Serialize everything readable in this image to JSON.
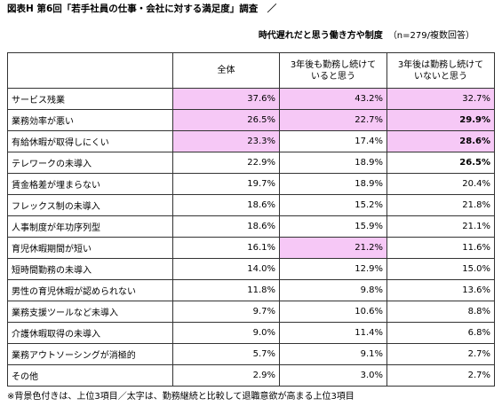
{
  "title": "図表H 第6回「若手社員の仕事・会社に対する満足度」調査　／",
  "subtitle": "時代遅れだと思う働き方や制度",
  "sample_note": "（n=279/複数回答）",
  "columns": [
    "",
    "全体",
    "3年後も勤務し続けて\nいると思う",
    "3年後は勤務し続けて\nいないと思う"
  ],
  "rows": [
    {
      "label": "サービス残業",
      "values": [
        "37.6%",
        "43.2%",
        "32.7%"
      ],
      "highlight": [
        true,
        true,
        true
      ],
      "bold": [
        false,
        false,
        false
      ]
    },
    {
      "label": "業務効率が悪い",
      "values": [
        "26.5%",
        "22.7%",
        "29.9%"
      ],
      "highlight": [
        true,
        true,
        true
      ],
      "bold": [
        false,
        false,
        true
      ]
    },
    {
      "label": "有給休暇が取得しにくい",
      "values": [
        "23.3%",
        "17.4%",
        "28.6%"
      ],
      "highlight": [
        true,
        false,
        true
      ],
      "bold": [
        false,
        false,
        true
      ]
    },
    {
      "label": "テレワークの未導入",
      "values": [
        "22.9%",
        "18.9%",
        "26.5%"
      ],
      "highlight": [
        false,
        false,
        false
      ],
      "bold": [
        false,
        false,
        true
      ]
    },
    {
      "label": "賃金格差が埋まらない",
      "values": [
        "19.7%",
        "18.9%",
        "20.4%"
      ],
      "highlight": [
        false,
        false,
        false
      ],
      "bold": [
        false,
        false,
        false
      ]
    },
    {
      "label": "フレックス制の未導入",
      "values": [
        "18.6%",
        "15.2%",
        "21.8%"
      ],
      "highlight": [
        false,
        false,
        false
      ],
      "bold": [
        false,
        false,
        false
      ]
    },
    {
      "label": "人事制度が年功序列型",
      "values": [
        "18.6%",
        "15.9%",
        "21.1%"
      ],
      "highlight": [
        false,
        false,
        false
      ],
      "bold": [
        false,
        false,
        false
      ]
    },
    {
      "label": "育児休暇期間が短い",
      "values": [
        "16.1%",
        "21.2%",
        "11.6%"
      ],
      "highlight": [
        false,
        true,
        false
      ],
      "bold": [
        false,
        false,
        false
      ]
    },
    {
      "label": "短時間勤務の未導入",
      "values": [
        "14.0%",
        "12.9%",
        "15.0%"
      ],
      "highlight": [
        false,
        false,
        false
      ],
      "bold": [
        false,
        false,
        false
      ]
    },
    {
      "label": "男性の育児休暇が認められない",
      "values": [
        "11.8%",
        "9.8%",
        "13.6%"
      ],
      "highlight": [
        false,
        false,
        false
      ],
      "bold": [
        false,
        false,
        false
      ]
    },
    {
      "label": "業務支援ツールなど未導入",
      "values": [
        "9.7%",
        "10.6%",
        "8.8%"
      ],
      "highlight": [
        false,
        false,
        false
      ],
      "bold": [
        false,
        false,
        false
      ]
    },
    {
      "label": "介護休暇取得の未導入",
      "values": [
        "9.0%",
        "11.4%",
        "6.8%"
      ],
      "highlight": [
        false,
        false,
        false
      ],
      "bold": [
        false,
        false,
        false
      ]
    },
    {
      "label": "業務アウトソーシングが消極的",
      "values": [
        "5.7%",
        "9.1%",
        "2.7%"
      ],
      "highlight": [
        false,
        false,
        false
      ],
      "bold": [
        false,
        false,
        false
      ]
    },
    {
      "label": "その他",
      "values": [
        "2.9%",
        "3.0%",
        "2.7%"
      ],
      "highlight": [
        false,
        false,
        false
      ],
      "bold": [
        false,
        false,
        false
      ]
    }
  ],
  "footnote": "※背景色付きは、上位3項目／太字は、勤務継続と比較して退職意欲が高まる上位3項目",
  "colors": {
    "highlight": "#f6c8f6",
    "border": "#333333"
  }
}
